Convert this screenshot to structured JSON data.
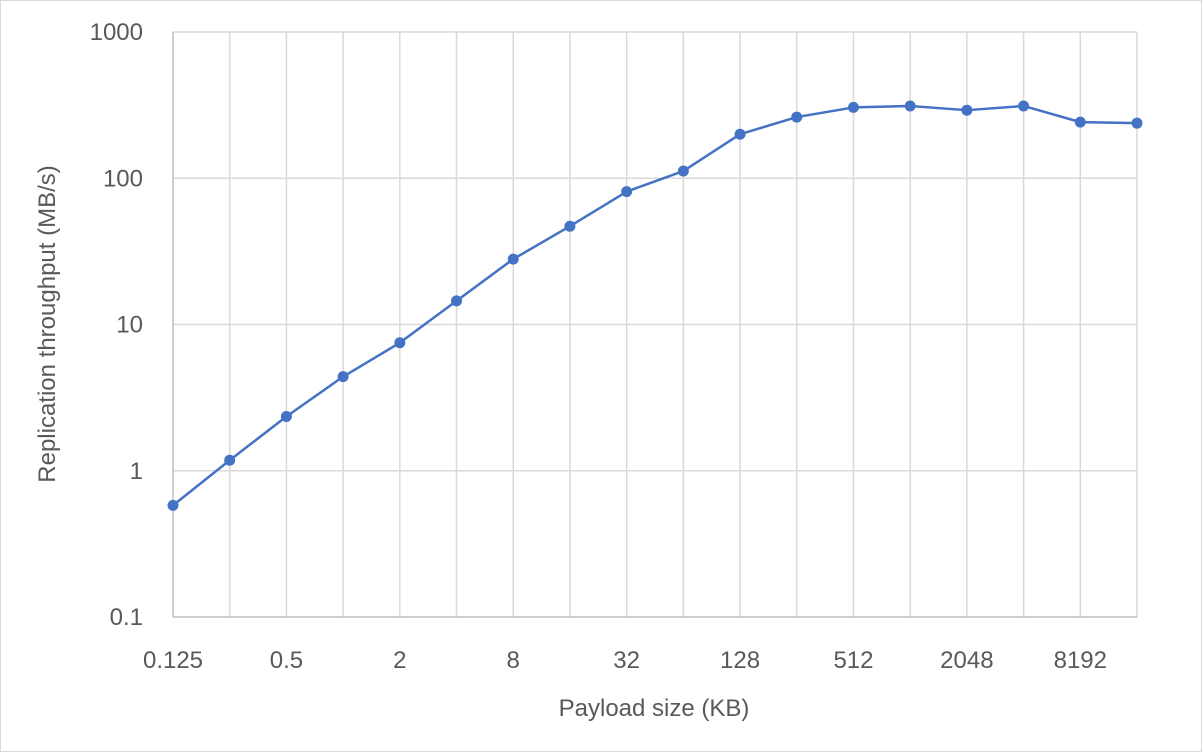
{
  "chart_data": {
    "type": "line",
    "xlabel": "Payload size (KB)",
    "ylabel": "Replication throughput (MB/s)",
    "x_scale": "log2",
    "y_scale": "log10",
    "xlim": [
      0.125,
      16384
    ],
    "ylim": [
      0.1,
      1000
    ],
    "x_tick_labels": [
      "0.125",
      "0.5",
      "2",
      "8",
      "32",
      "128",
      "512",
      "2048",
      "8192"
    ],
    "y_tick_labels": [
      "0.1",
      "1",
      "10",
      "100",
      "1000"
    ],
    "grid": true,
    "legend": "none",
    "colors": {
      "series": "#4472C4",
      "grid": "#d9d9d9",
      "text": "#595959"
    },
    "series": [
      {
        "x": [
          0.125,
          0.25,
          0.5,
          1,
          2,
          4,
          8,
          16,
          32,
          64,
          128,
          256,
          512,
          1024,
          2048,
          4096,
          8192,
          16384
        ],
        "values": [
          0.58,
          1.18,
          2.35,
          4.4,
          7.5,
          14.5,
          28,
          47,
          81,
          112,
          200,
          262,
          305,
          312,
          292,
          312,
          242,
          238
        ]
      }
    ]
  }
}
